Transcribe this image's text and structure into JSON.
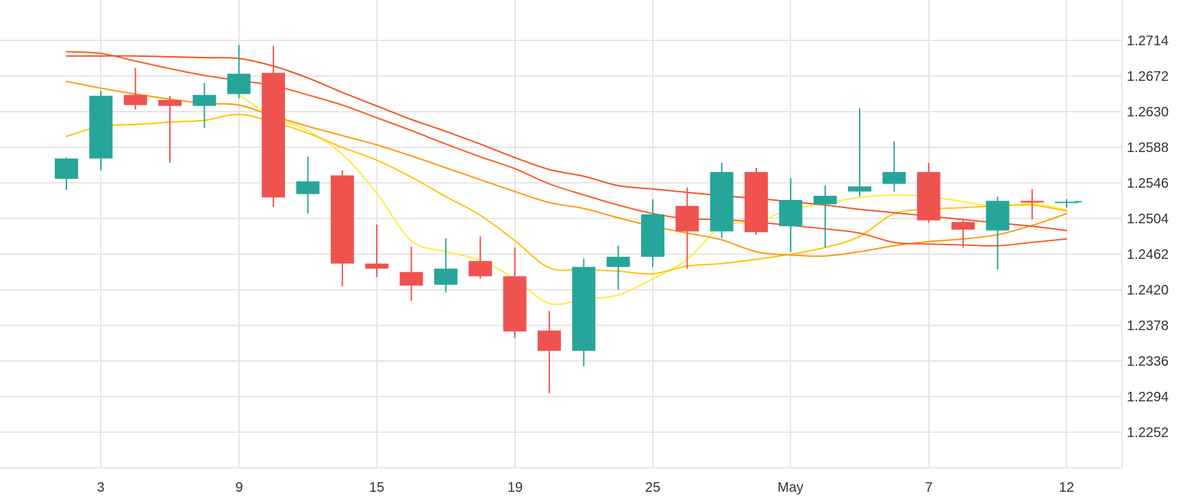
{
  "chart_data": {
    "type": "candlestick",
    "title": "",
    "xlabel": "",
    "ylabel": "",
    "ylim": [
      1.221,
      1.2762
    ],
    "y_ticks": [
      "1.2714",
      "1.2672",
      "1.2630",
      "1.2588",
      "1.2546",
      "1.2504",
      "1.2462",
      "1.2420",
      "1.2378",
      "1.2336",
      "1.2294",
      "1.2252"
    ],
    "x_ticks": [
      {
        "label": "3",
        "index": 1
      },
      {
        "label": "9",
        "index": 5
      },
      {
        "label": "15",
        "index": 9
      },
      {
        "label": "19",
        "index": 13
      },
      {
        "label": "25",
        "index": 17
      },
      {
        "label": "May",
        "index": 21
      },
      {
        "label": "7",
        "index": 25
      },
      {
        "label": "12",
        "index": 29
      }
    ],
    "grid": true,
    "colors": {
      "up": "#26a69a",
      "down": "#ef5350",
      "grid": "#e6e6e6",
      "text": "#333333"
    },
    "candles": [
      {
        "o": 1.2551,
        "h": 1.2576,
        "l": 1.2538,
        "c": 1.2575
      },
      {
        "o": 1.2575,
        "h": 1.2655,
        "l": 1.2561,
        "c": 1.2649
      },
      {
        "o": 1.265,
        "h": 1.2682,
        "l": 1.2633,
        "c": 1.2638
      },
      {
        "o": 1.2644,
        "h": 1.2649,
        "l": 1.257,
        "c": 1.2637
      },
      {
        "o": 1.2637,
        "h": 1.2664,
        "l": 1.2611,
        "c": 1.265
      },
      {
        "o": 1.2651,
        "h": 1.2709,
        "l": 1.2646,
        "c": 1.2675
      },
      {
        "o": 1.2676,
        "h": 1.2708,
        "l": 1.2518,
        "c": 1.2529
      },
      {
        "o": 1.2533,
        "h": 1.2577,
        "l": 1.251,
        "c": 1.2548
      },
      {
        "o": 1.2555,
        "h": 1.2561,
        "l": 1.2424,
        "c": 1.2451
      },
      {
        "o": 1.2451,
        "h": 1.2497,
        "l": 1.2435,
        "c": 1.2445
      },
      {
        "o": 1.2441,
        "h": 1.2471,
        "l": 1.2407,
        "c": 1.2425
      },
      {
        "o": 1.2426,
        "h": 1.2481,
        "l": 1.2417,
        "c": 1.2445
      },
      {
        "o": 1.2454,
        "h": 1.2483,
        "l": 1.2433,
        "c": 1.2436
      },
      {
        "o": 1.2436,
        "h": 1.247,
        "l": 1.2363,
        "c": 1.2371
      },
      {
        "o": 1.2372,
        "h": 1.2395,
        "l": 1.2298,
        "c": 1.2348
      },
      {
        "o": 1.2348,
        "h": 1.2457,
        "l": 1.233,
        "c": 1.2447
      },
      {
        "o": 1.2447,
        "h": 1.2472,
        "l": 1.242,
        "c": 1.2459
      },
      {
        "o": 1.2459,
        "h": 1.2527,
        "l": 1.2447,
        "c": 1.2509
      },
      {
        "o": 1.2519,
        "h": 1.2541,
        "l": 1.2445,
        "c": 1.2489
      },
      {
        "o": 1.2489,
        "h": 1.257,
        "l": 1.2481,
        "c": 1.2559
      },
      {
        "o": 1.2559,
        "h": 1.2564,
        "l": 1.2485,
        "c": 1.2488
      },
      {
        "o": 1.2495,
        "h": 1.2552,
        "l": 1.2465,
        "c": 1.2526
      },
      {
        "o": 1.2521,
        "h": 1.2543,
        "l": 1.247,
        "c": 1.2531
      },
      {
        "o": 1.2536,
        "h": 1.2634,
        "l": 1.253,
        "c": 1.2542
      },
      {
        "o": 1.2545,
        "h": 1.2595,
        "l": 1.2536,
        "c": 1.2559
      },
      {
        "o": 1.2559,
        "h": 1.257,
        "l": 1.2499,
        "c": 1.2502
      },
      {
        "o": 1.25,
        "h": 1.2503,
        "l": 1.247,
        "c": 1.2491
      },
      {
        "o": 1.249,
        "h": 1.253,
        "l": 1.2444,
        "c": 1.2525
      },
      {
        "o": 1.2525,
        "h": 1.2539,
        "l": 1.2503,
        "c": 1.2523
      },
      {
        "o": 1.2523,
        "h": 1.2527,
        "l": 1.2517,
        "c": 1.2524
      }
    ],
    "ma_lines": [
      {
        "color": "#ffeb3b",
        "points": [
          [
            5,
            1.265
          ],
          [
            6,
            1.2624
          ],
          [
            7,
            1.2608
          ],
          [
            8,
            1.258
          ],
          [
            9,
            1.2534
          ],
          [
            10,
            1.2478
          ],
          [
            11,
            1.2465
          ],
          [
            12,
            1.2455
          ],
          [
            13,
            1.2433
          ],
          [
            14,
            1.2404
          ],
          [
            15,
            1.2409
          ],
          [
            16,
            1.2414
          ],
          [
            17,
            1.2433
          ],
          [
            18,
            1.2456
          ],
          [
            19,
            1.2495
          ],
          [
            20,
            1.25
          ],
          [
            21,
            1.2515
          ],
          [
            22,
            1.2522
          ],
          [
            23,
            1.2529
          ],
          [
            24,
            1.2532
          ],
          [
            25,
            1.253
          ],
          [
            26,
            1.2524
          ],
          [
            27,
            1.2518
          ],
          [
            28,
            1.2522
          ],
          [
            29,
            1.2514
          ]
        ]
      },
      {
        "color": "#ffc107",
        "points": [
          [
            0,
            1.2601
          ],
          [
            1,
            1.2613
          ],
          [
            2,
            1.2615
          ],
          [
            3,
            1.2618
          ],
          [
            4,
            1.262
          ],
          [
            5,
            1.2627
          ],
          [
            6,
            1.2618
          ],
          [
            7,
            1.2605
          ],
          [
            8,
            1.2588
          ],
          [
            9,
            1.2573
          ],
          [
            10,
            1.2553
          ],
          [
            11,
            1.253
          ],
          [
            12,
            1.2508
          ],
          [
            13,
            1.2478
          ],
          [
            14,
            1.2446
          ],
          [
            15,
            1.2444
          ],
          [
            16,
            1.2442
          ],
          [
            17,
            1.2439
          ],
          [
            18,
            1.2448
          ],
          [
            19,
            1.2451
          ],
          [
            20,
            1.2456
          ],
          [
            21,
            1.2462
          ],
          [
            22,
            1.247
          ],
          [
            23,
            1.2483
          ],
          [
            24,
            1.251
          ],
          [
            25,
            1.2515
          ],
          [
            26,
            1.2517
          ],
          [
            27,
            1.2519
          ],
          [
            28,
            1.252
          ],
          [
            29,
            1.2513
          ]
        ]
      },
      {
        "color": "#ff9800",
        "points": [
          [
            0,
            1.2666
          ],
          [
            1,
            1.2658
          ],
          [
            2,
            1.2651
          ],
          [
            3,
            1.2645
          ],
          [
            4,
            1.264
          ],
          [
            5,
            1.2638
          ],
          [
            6,
            1.2625
          ],
          [
            7,
            1.2613
          ],
          [
            8,
            1.2602
          ],
          [
            9,
            1.2591
          ],
          [
            10,
            1.2578
          ],
          [
            11,
            1.2564
          ],
          [
            12,
            1.255
          ],
          [
            13,
            1.2536
          ],
          [
            14,
            1.2523
          ],
          [
            15,
            1.2516
          ],
          [
            16,
            1.2505
          ],
          [
            17,
            1.2495
          ],
          [
            18,
            1.2487
          ],
          [
            19,
            1.2479
          ],
          [
            20,
            1.2465
          ],
          [
            21,
            1.2461
          ],
          [
            22,
            1.246
          ],
          [
            23,
            1.2465
          ],
          [
            24,
            1.2472
          ],
          [
            25,
            1.2477
          ],
          [
            26,
            1.248
          ],
          [
            27,
            1.2485
          ],
          [
            28,
            1.2496
          ],
          [
            29,
            1.251
          ]
        ]
      },
      {
        "color": "#ff5722",
        "points": [
          [
            0,
            1.2701
          ],
          [
            1,
            1.2699
          ],
          [
            2,
            1.269
          ],
          [
            3,
            1.2681
          ],
          [
            4,
            1.2673
          ],
          [
            5,
            1.2667
          ],
          [
            6,
            1.2661
          ],
          [
            7,
            1.265
          ],
          [
            8,
            1.2638
          ],
          [
            9,
            1.2623
          ],
          [
            10,
            1.2608
          ],
          [
            11,
            1.2592
          ],
          [
            12,
            1.2577
          ],
          [
            13,
            1.2563
          ],
          [
            14,
            1.2545
          ],
          [
            15,
            1.2532
          ],
          [
            16,
            1.252
          ],
          [
            17,
            1.251
          ],
          [
            18,
            1.2504
          ],
          [
            19,
            1.2503
          ],
          [
            20,
            1.25
          ],
          [
            21,
            1.2496
          ],
          [
            22,
            1.2492
          ],
          [
            23,
            1.2487
          ],
          [
            24,
            1.2476
          ],
          [
            25,
            1.2474
          ],
          [
            26,
            1.2473
          ],
          [
            27,
            1.2472
          ],
          [
            28,
            1.2476
          ],
          [
            29,
            1.248
          ]
        ]
      },
      {
        "color": "#f4511e",
        "points": [
          [
            0,
            1.2696
          ],
          [
            1,
            1.2696
          ],
          [
            2,
            1.2696
          ],
          [
            3,
            1.2695
          ],
          [
            4,
            1.2694
          ],
          [
            5,
            1.2693
          ],
          [
            6,
            1.2684
          ],
          [
            7,
            1.267
          ],
          [
            8,
            1.2653
          ],
          [
            9,
            1.2637
          ],
          [
            10,
            1.2621
          ],
          [
            11,
            1.2607
          ],
          [
            12,
            1.2592
          ],
          [
            13,
            1.2576
          ],
          [
            14,
            1.2562
          ],
          [
            15,
            1.2554
          ],
          [
            16,
            1.2543
          ],
          [
            17,
            1.2539
          ],
          [
            18,
            1.2535
          ],
          [
            19,
            1.2531
          ],
          [
            20,
            1.2528
          ],
          [
            21,
            1.2524
          ],
          [
            22,
            1.252
          ],
          [
            23,
            1.2515
          ],
          [
            24,
            1.2511
          ],
          [
            25,
            1.2507
          ],
          [
            26,
            1.2503
          ],
          [
            27,
            1.2499
          ],
          [
            28,
            1.2495
          ],
          [
            29,
            1.249
          ]
        ]
      }
    ]
  }
}
